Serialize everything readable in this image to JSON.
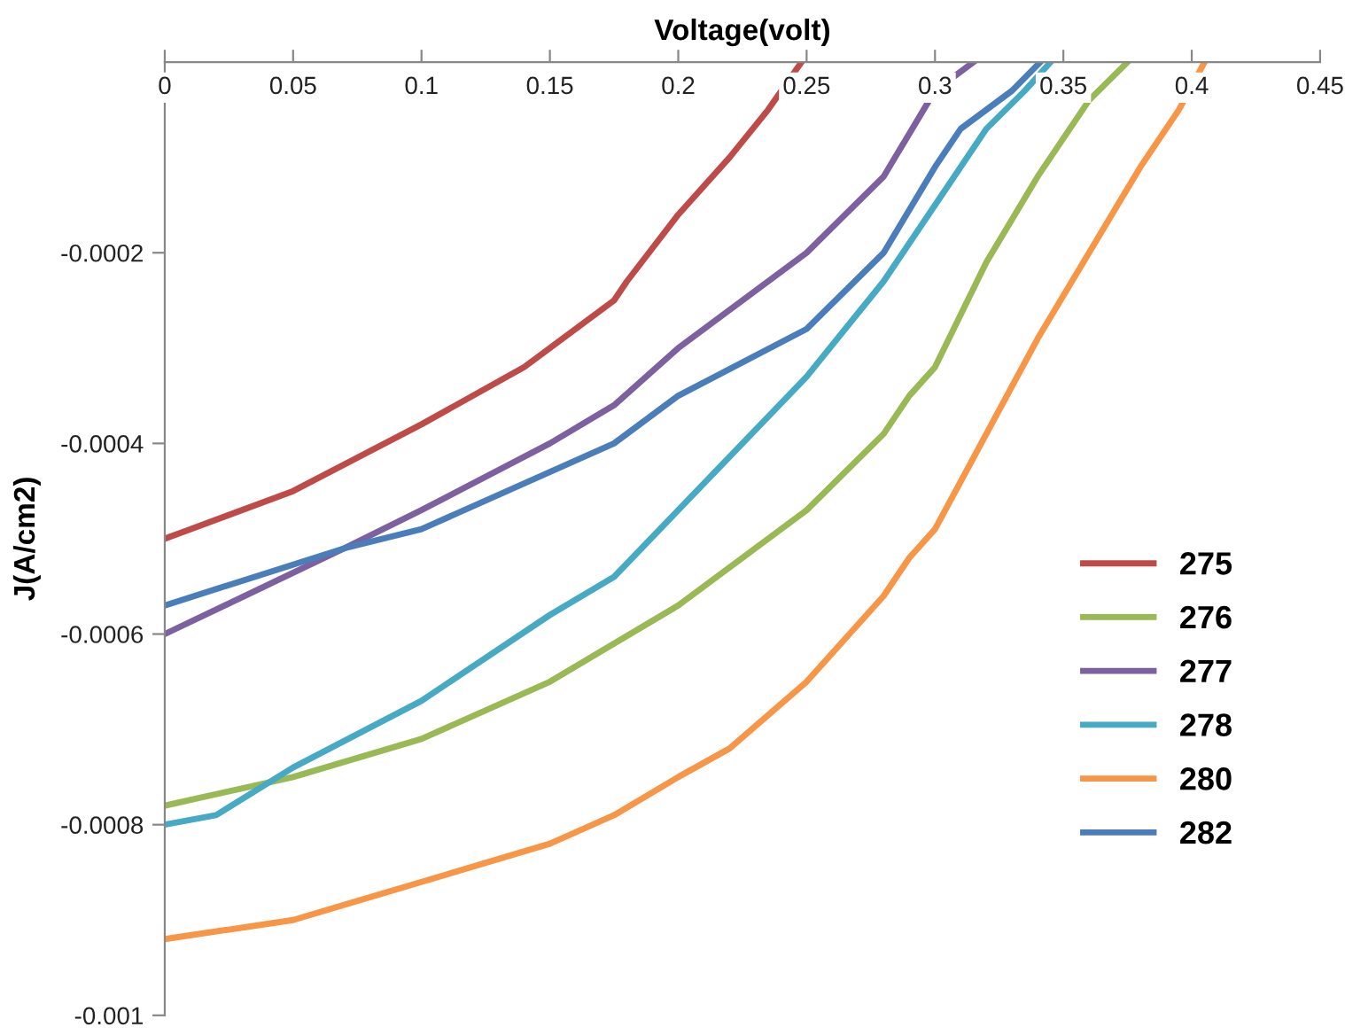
{
  "chart_data": {
    "type": "line",
    "xlabel": "Voltage(volt)",
    "ylabel": "J(A/cm2)",
    "xlim": [
      0,
      0.45
    ],
    "xticks": [
      0,
      0.05,
      0.1,
      0.15,
      0.2,
      0.25,
      0.3,
      0.35,
      0.4,
      0.45
    ],
    "ylim": [
      -0.001,
      0
    ],
    "yticks": [
      -0.001,
      -0.0008,
      -0.0006,
      -0.0004,
      -0.0002
    ],
    "grid": false,
    "legend": "right",
    "marker": "none",
    "line_style": "solid",
    "series": [
      {
        "name": "275",
        "color": "#be4b48",
        "x": [
          0,
          0.01,
          0.05,
          0.1,
          0.14,
          0.16,
          0.175,
          0.18,
          0.2,
          0.22,
          0.235,
          0.248
        ],
        "values": [
          -0.0005,
          -0.00049,
          -0.00045,
          -0.00038,
          -0.00032,
          -0.00028,
          -0.00025,
          -0.00023,
          -0.00016,
          -0.0001,
          -5e-05,
          0
        ]
      },
      {
        "name": "276",
        "color": "#98b954",
        "x": [
          0,
          0.05,
          0.1,
          0.15,
          0.175,
          0.2,
          0.25,
          0.28,
          0.29,
          0.3,
          0.32,
          0.34,
          0.36,
          0.375
        ],
        "values": [
          -0.00078,
          -0.00075,
          -0.00071,
          -0.00065,
          -0.00061,
          -0.00057,
          -0.00047,
          -0.00039,
          -0.00035,
          -0.00032,
          -0.00021,
          -0.00012,
          -4e-05,
          0
        ]
      },
      {
        "name": "277",
        "color": "#7d60a0",
        "x": [
          0,
          0.07,
          0.1,
          0.15,
          0.175,
          0.2,
          0.25,
          0.28,
          0.3,
          0.315
        ],
        "values": [
          -0.0006,
          -0.00051,
          -0.00047,
          -0.0004,
          -0.00036,
          -0.0003,
          -0.0002,
          -0.00012,
          -3e-05,
          0
        ]
      },
      {
        "name": "278",
        "color": "#46aac5",
        "x": [
          0,
          0.02,
          0.05,
          0.1,
          0.15,
          0.175,
          0.2,
          0.25,
          0.28,
          0.3,
          0.32,
          0.335,
          0.345
        ],
        "values": [
          -0.0008,
          -0.00079,
          -0.00074,
          -0.00067,
          -0.00058,
          -0.00054,
          -0.00047,
          -0.00033,
          -0.00023,
          -0.00015,
          -7e-05,
          -3e-05,
          0
        ]
      },
      {
        "name": "280",
        "color": "#f79646",
        "x": [
          0,
          0.05,
          0.1,
          0.15,
          0.175,
          0.2,
          0.22,
          0.25,
          0.28,
          0.29,
          0.3,
          0.32,
          0.34,
          0.36,
          0.38,
          0.395,
          0.405
        ],
        "values": [
          -0.00092,
          -0.0009,
          -0.00086,
          -0.00082,
          -0.00079,
          -0.00075,
          -0.00072,
          -0.00065,
          -0.00056,
          -0.00052,
          -0.00049,
          -0.00039,
          -0.00029,
          -0.0002,
          -0.00011,
          -5e-05,
          0
        ]
      },
      {
        "name": "282",
        "color": "#4a7ebb",
        "x": [
          0,
          0.07,
          0.1,
          0.15,
          0.175,
          0.2,
          0.25,
          0.28,
          0.3,
          0.31,
          0.33,
          0.341
        ],
        "values": [
          -0.00057,
          -0.00051,
          -0.00049,
          -0.00043,
          -0.0004,
          -0.00035,
          -0.00028,
          -0.0002,
          -0.00011,
          -7e-05,
          -3e-05,
          0
        ]
      }
    ]
  }
}
